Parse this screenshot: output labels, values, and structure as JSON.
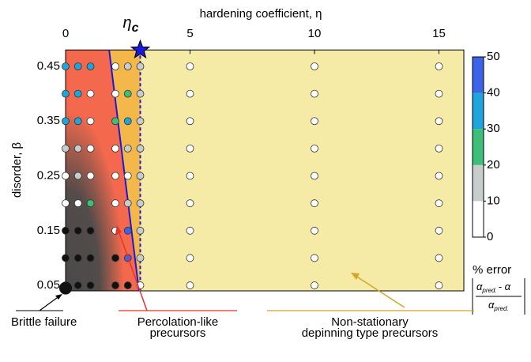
{
  "chart_data": {
    "type": "scatter",
    "x_label": "hardening coefficient, η",
    "y_label": "disorder, β",
    "xlim": [
      0,
      16
    ],
    "ylim": [
      0.04,
      0.48
    ],
    "xticks": [
      0,
      5,
      10,
      15
    ],
    "yticks": [
      0.05,
      0.15,
      0.25,
      0.35,
      0.45
    ],
    "x": [
      0,
      0.5,
      1,
      2,
      2.5,
      3,
      5,
      10,
      15
    ],
    "y": [
      0.05,
      0.1,
      0.15,
      0.2,
      0.25,
      0.3,
      0.35,
      0.4,
      0.45
    ],
    "errors": [
      [
        null,
        null,
        null,
        null,
        null,
        5,
        5,
        5,
        5
      ],
      [
        null,
        null,
        null,
        null,
        45,
        15,
        5,
        5,
        5
      ],
      [
        null,
        null,
        null,
        5,
        45,
        15,
        5,
        5,
        5
      ],
      [
        5,
        5,
        25,
        5,
        15,
        15,
        5,
        5,
        5
      ],
      [
        5,
        15,
        5,
        5,
        5,
        15,
        5,
        5,
        5
      ],
      [
        15,
        15,
        5,
        5,
        15,
        15,
        5,
        5,
        5
      ],
      [
        35,
        35,
        5,
        25,
        35,
        15,
        5,
        5,
        5
      ],
      [
        35,
        35,
        5,
        5,
        25,
        15,
        5,
        5,
        5
      ],
      [
        35,
        35,
        35,
        5,
        15,
        15,
        5,
        5,
        5
      ]
    ],
    "brittle_color": "#111111",
    "brittle_point": {
      "x": 0,
      "y": 0.045
    },
    "eta_c": 3,
    "eta_c_symbol": "η",
    "eta_c_subscript": "c",
    "eta_c_color": "#1a1adb",
    "boundary": {
      "x": [
        1.75,
        2.95
      ],
      "y": [
        0.48,
        0.04
      ]
    },
    "region_colors": {
      "background": "#f5eaa6",
      "percolation": "#f4694d",
      "transition": "#f4b84a",
      "brittle": "#4a4a4a"
    },
    "colorbar": {
      "ticks": [
        0,
        10,
        20,
        30,
        40,
        50
      ],
      "colors": [
        "#ffffff",
        "#c6cdcc",
        "#3dbf7a",
        "#1ea5dc",
        "#3d63e8"
      ],
      "label": "% error",
      "formula": {
        "numerator": [
          "α",
          "pred.",
          "- α"
        ],
        "denominator": [
          "α",
          "pred."
        ]
      }
    },
    "annotations": {
      "brittle": "Brittle failure",
      "percolation": [
        "Percolation-like",
        "precursors"
      ],
      "percolation_color": "#e8332a",
      "depinning": [
        "Non-stationary",
        "depinning type precursors"
      ],
      "depinning_color": "#d4a52a"
    }
  }
}
